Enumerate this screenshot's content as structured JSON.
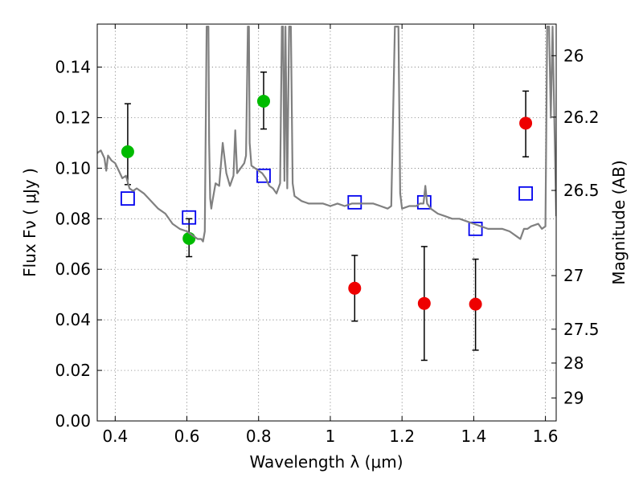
{
  "chart_data": {
    "type": "scatter",
    "xlabel": "Wavelength  λ (μm)",
    "ylabel": "Flux  Fν  ( μJy )",
    "ylabel_right": "Magnitude (AB)",
    "xlim": [
      0.35,
      1.63
    ],
    "ylim": [
      0.0,
      0.157
    ],
    "grid": true,
    "x_ticks": [
      0.4,
      0.6,
      0.8,
      1.0,
      1.2,
      1.4,
      1.6
    ],
    "x_tick_labels": [
      "0.4",
      "0.6",
      "0.8",
      "1",
      "1.2",
      "1.4",
      "1.6"
    ],
    "y_ticks": [
      0.0,
      0.02,
      0.04,
      0.06,
      0.08,
      0.1,
      0.12,
      0.14
    ],
    "y_tick_labels": [
      "0.00",
      "0.02",
      "0.04",
      "0.06",
      "0.08",
      "0.10",
      "0.12",
      "0.14"
    ],
    "y2_ticks": [
      {
        "label": "26",
        "flux": 0.1445
      },
      {
        "label": "26.2",
        "flux": 0.1202
      },
      {
        "label": "26.5",
        "flux": 0.0912
      },
      {
        "label": "27",
        "flux": 0.0575
      },
      {
        "label": "27.5",
        "flux": 0.0363
      },
      {
        "label": "28",
        "flux": 0.0229
      },
      {
        "label": "29",
        "flux": 0.0091
      }
    ],
    "series": [
      {
        "color": "#00bb00",
        "points": [
          {
            "x": 0.435,
            "y": 0.1065,
            "err_lo": 0.0935,
            "err_hi": 0.1255
          },
          {
            "x": 0.606,
            "y": 0.0722,
            "err_lo": 0.065,
            "err_hi": 0.08
          },
          {
            "x": 0.814,
            "y": 0.1265,
            "err_lo": 0.1155,
            "err_hi": 0.138
          }
        ]
      },
      {
        "color": "#ee0000",
        "points": [
          {
            "x": 1.068,
            "y": 0.0525,
            "err_lo": 0.0395,
            "err_hi": 0.0655
          },
          {
            "x": 1.262,
            "y": 0.0465,
            "err_lo": 0.024,
            "err_hi": 0.069
          },
          {
            "x": 1.405,
            "y": 0.0462,
            "err_lo": 0.028,
            "err_hi": 0.064
          },
          {
            "x": 1.545,
            "y": 0.1178,
            "err_lo": 0.1045,
            "err_hi": 0.1305
          }
        ]
      },
      {
        "color": "#0000ee",
        "marker": "square",
        "points": [
          {
            "x": 0.435,
            "y": 0.088
          },
          {
            "x": 0.606,
            "y": 0.0805
          },
          {
            "x": 0.814,
            "y": 0.097
          },
          {
            "x": 1.068,
            "y": 0.0865
          },
          {
            "x": 1.262,
            "y": 0.0865
          },
          {
            "x": 1.405,
            "y": 0.076
          },
          {
            "x": 1.545,
            "y": 0.09
          }
        ]
      },
      {
        "color": "#808080",
        "type": "line",
        "x": [
          0.35,
          0.36,
          0.37,
          0.375,
          0.38,
          0.39,
          0.4,
          0.41,
          0.42,
          0.43,
          0.44,
          0.45,
          0.46,
          0.48,
          0.5,
          0.52,
          0.54,
          0.56,
          0.58,
          0.6,
          0.62,
          0.63,
          0.64,
          0.645,
          0.65,
          0.655,
          0.66,
          0.662,
          0.665,
          0.668,
          0.67,
          0.675,
          0.68,
          0.69,
          0.7,
          0.71,
          0.72,
          0.73,
          0.735,
          0.74,
          0.75,
          0.76,
          0.765,
          0.77,
          0.773,
          0.775,
          0.78,
          0.79,
          0.8,
          0.81,
          0.82,
          0.83,
          0.84,
          0.85,
          0.86,
          0.865,
          0.868,
          0.872,
          0.875,
          0.88,
          0.885,
          0.89,
          0.895,
          0.9,
          0.92,
          0.94,
          0.96,
          0.98,
          1.0,
          1.02,
          1.04,
          1.06,
          1.08,
          1.1,
          1.12,
          1.14,
          1.16,
          1.17,
          1.18,
          1.185,
          1.19,
          1.195,
          1.2,
          1.22,
          1.24,
          1.25,
          1.26,
          1.265,
          1.27,
          1.28,
          1.3,
          1.32,
          1.34,
          1.36,
          1.38,
          1.4,
          1.42,
          1.44,
          1.46,
          1.48,
          1.5,
          1.52,
          1.53,
          1.54,
          1.55,
          1.56,
          1.58,
          1.59,
          1.6,
          1.605,
          1.61,
          1.615,
          1.62,
          1.63
        ],
        "y": [
          0.106,
          0.107,
          0.104,
          0.099,
          0.105,
          0.103,
          0.102,
          0.099,
          0.096,
          0.097,
          0.092,
          0.091,
          0.092,
          0.09,
          0.087,
          0.084,
          0.082,
          0.078,
          0.076,
          0.075,
          0.073,
          0.072,
          0.072,
          0.071,
          0.075,
          0.156,
          0.156,
          0.11,
          0.088,
          0.084,
          0.086,
          0.09,
          0.094,
          0.093,
          0.11,
          0.098,
          0.093,
          0.097,
          0.115,
          0.098,
          0.1,
          0.102,
          0.105,
          0.156,
          0.156,
          0.11,
          0.101,
          0.1,
          0.099,
          0.098,
          0.096,
          0.093,
          0.092,
          0.09,
          0.094,
          0.156,
          0.156,
          0.095,
          0.156,
          0.092,
          0.156,
          0.156,
          0.094,
          0.089,
          0.087,
          0.086,
          0.086,
          0.086,
          0.085,
          0.086,
          0.085,
          0.086,
          0.086,
          0.086,
          0.086,
          0.085,
          0.084,
          0.085,
          0.156,
          0.156,
          0.156,
          0.09,
          0.084,
          0.085,
          0.085,
          0.086,
          0.086,
          0.093,
          0.086,
          0.084,
          0.082,
          0.081,
          0.08,
          0.08,
          0.079,
          0.078,
          0.077,
          0.076,
          0.076,
          0.076,
          0.075,
          0.073,
          0.072,
          0.076,
          0.076,
          0.077,
          0.078,
          0.076,
          0.077,
          0.156,
          0.156,
          0.12,
          0.156,
          0.081
        ]
      }
    ]
  }
}
